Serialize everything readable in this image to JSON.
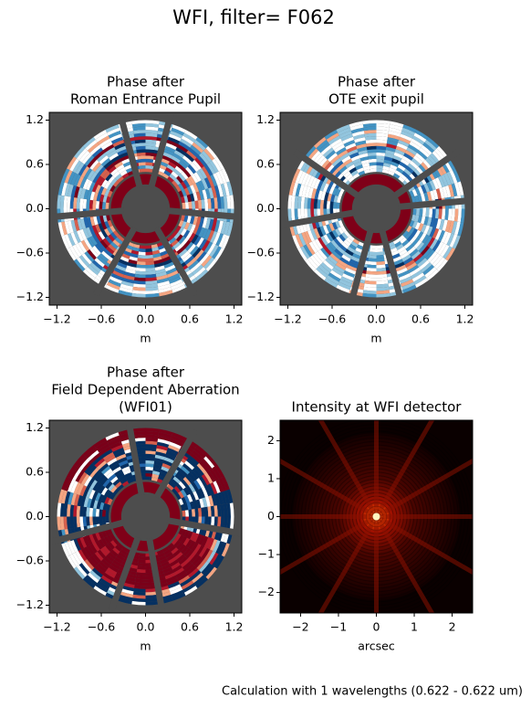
{
  "title": "WFI, filter= F062",
  "footer": "Calculation with 1 wavelengths (0.622 - 0.622 um)",
  "chart_data": [
    {
      "type": "image",
      "title": [
        "Phase after",
        "Roman Entrance Pupil"
      ],
      "xlabel": "m",
      "xlim": [
        -1.305,
        1.305
      ],
      "ylim": [
        -1.305,
        1.305
      ],
      "xticks": [
        {
          "value": -1.2,
          "label": "−1.2"
        },
        {
          "value": -0.6,
          "label": "−0.6"
        },
        {
          "value": 0,
          "label": "0.0"
        },
        0.6,
        1.2
      ],
      "yticks": [
        {
          "value": -1.2,
          "label": "−1.2"
        },
        {
          "value": -0.6,
          "label": "−0.6"
        },
        {
          "value": 0,
          "label": "0.0"
        },
        0.6,
        1.2
      ]
    },
    {
      "type": "image",
      "title": [
        "Phase after",
        "OTE exit pupil"
      ],
      "xlabel": "m",
      "xlim": [
        -1.305,
        1.305
      ],
      "ylim": [
        -1.305,
        1.305
      ],
      "xticks": [
        {
          "value": -1.2,
          "label": "−1.2"
        },
        {
          "value": -0.6,
          "label": "−0.6"
        },
        {
          "value": 0,
          "label": "0.0"
        },
        0.6,
        1.2
      ],
      "yticks": [
        {
          "value": -1.2,
          "label": "−1.2"
        },
        {
          "value": -0.6,
          "label": "−0.6"
        },
        {
          "value": 0,
          "label": "0.0"
        },
        0.6,
        1.2
      ]
    },
    {
      "type": "image",
      "title": [
        "Phase after",
        "Field Dependent Aberration",
        "(WFI01)"
      ],
      "xlabel": "m",
      "xlim": [
        -1.305,
        1.305
      ],
      "ylim": [
        -1.305,
        1.305
      ],
      "xticks": [
        {
          "value": -1.2,
          "label": "−1.2"
        },
        {
          "value": -0.6,
          "label": "−0.6"
        },
        {
          "value": 0,
          "label": "0.0"
        },
        0.6,
        1.2
      ],
      "yticks": [
        {
          "value": -1.2,
          "label": "−1.2"
        },
        {
          "value": -0.6,
          "label": "−0.6"
        },
        {
          "value": 0,
          "label": "0.0"
        },
        0.6,
        1.2
      ]
    },
    {
      "type": "intensity",
      "title": [
        "Intensity at WFI detector"
      ],
      "xlabel": "arcsec",
      "xlim": [
        -2.54,
        2.54
      ],
      "ylim": [
        -2.54,
        2.54
      ],
      "xticks": [
        {
          "value": -2,
          "label": "−2"
        },
        {
          "value": -1,
          "label": "−1"
        },
        0,
        1,
        2
      ],
      "yticks": [
        {
          "value": -2,
          "label": "−2"
        },
        {
          "value": -1,
          "label": "−1"
        },
        0,
        1,
        2
      ]
    }
  ]
}
